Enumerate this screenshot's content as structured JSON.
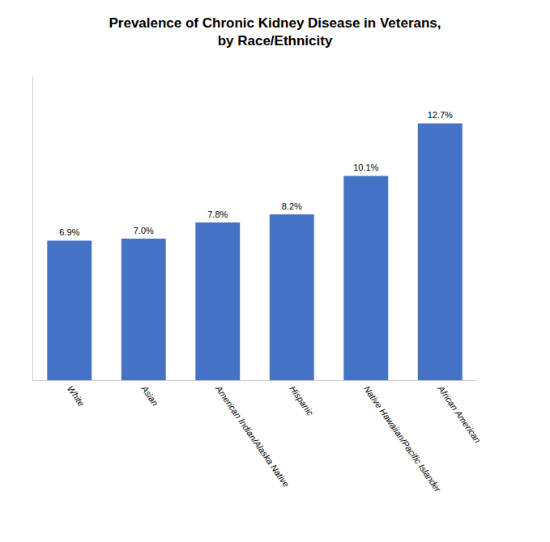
{
  "chart_data": {
    "type": "bar",
    "title": "Prevalence of Chronic Kidney Disease in Veterans,\nby Race/Ethnicity",
    "categories": [
      "White",
      "Asian",
      "American Indian/Alaska Native",
      "Hispanic",
      "Native Hawaiian/Pacific Islander",
      "African American"
    ],
    "values": [
      6.9,
      7.0,
      7.8,
      8.2,
      10.1,
      12.7
    ],
    "value_labels": [
      "6.9%",
      "7.0%",
      "7.8%",
      "8.2%",
      "10.1%",
      "12.7%"
    ],
    "data_labels": true,
    "color": "#4472C4",
    "ylim": [
      0,
      15
    ],
    "grid": false,
    "tick_labels": "x"
  }
}
